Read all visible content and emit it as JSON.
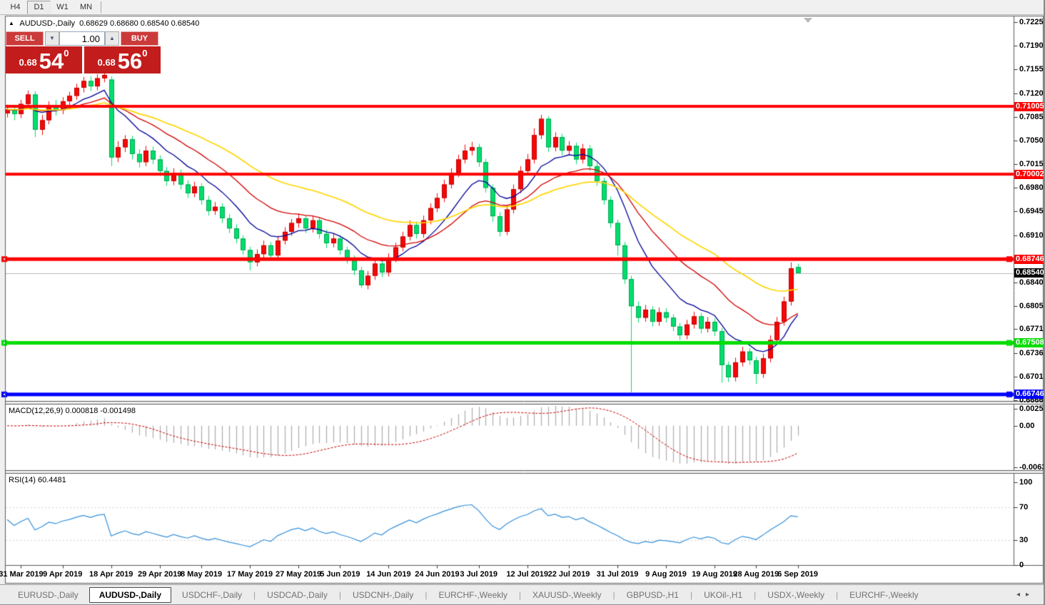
{
  "toolbar": {
    "timeframes": [
      {
        "label": "H4",
        "active": false
      },
      {
        "label": "D1",
        "active": true
      },
      {
        "label": "W1",
        "active": false
      },
      {
        "label": "MN",
        "active": false
      }
    ]
  },
  "chart": {
    "title": {
      "symbol": "AUDUSD-,Daily",
      "ohlc": "0.68629 0.68680 0.68540 0.68540"
    }
  },
  "trade_panel": {
    "sell_label": "SELL",
    "buy_label": "BUY",
    "volume": "1.00",
    "bid": {
      "base": "0.68",
      "big": "54",
      "sup": "0"
    },
    "ask": {
      "base": "0.68",
      "big": "56",
      "sup": "0"
    }
  },
  "chart_data": {
    "type": "candlestick",
    "symbol": "AUDUSD-",
    "timeframe": "Daily",
    "ohlc_display": {
      "open": "0.68629",
      "high": "0.68680",
      "low": "0.68540",
      "close": "0.68540"
    },
    "bull_color": "#F50808",
    "bear_color": "#00DE6E",
    "price_scale_ticks": [
      "0.72250",
      "0.71900",
      "0.71550",
      "0.71200",
      "0.70850",
      "0.70500",
      "0.70150",
      "0.69800",
      "0.69450",
      "0.69100",
      "0.68400",
      "0.68050",
      "0.67710",
      "0.67360",
      "0.67010",
      "0.66660"
    ],
    "hlines": [
      {
        "price": 0.71005,
        "label": "0.71005",
        "color": "#FE0000",
        "width": 4,
        "marker": false
      },
      {
        "price": 0.70002,
        "label": "0.70002",
        "color": "#FE0000",
        "width": 4,
        "marker": false
      },
      {
        "price": 0.68746,
        "label": "0.68746",
        "color": "#FE0000",
        "width": 5,
        "marker": true
      },
      {
        "price": 0.67508,
        "label": "0.67508",
        "color": "#00DD00",
        "width": 5,
        "marker": true
      },
      {
        "price": 0.66746,
        "label": "0.66746",
        "color": "#0000FE",
        "width": 5,
        "marker": true
      }
    ],
    "bid_line": {
      "price": 0.6854,
      "label": "0.68540",
      "line_color": "#BBBBBB",
      "label_bg": "#000000"
    },
    "moving_averages": [
      {
        "period": 10,
        "method": "ema",
        "color": "#000098"
      },
      {
        "period": 21,
        "method": "ema",
        "color": "#D40000"
      },
      {
        "period": 40,
        "method": "ema",
        "color": "#FFD600"
      }
    ],
    "date_labels": [
      {
        "label": "31 Mar 2019",
        "i": 2
      },
      {
        "label": "9 Apr 2019",
        "i": 8
      },
      {
        "label": "18 Apr 2019",
        "i": 15
      },
      {
        "label": "29 Apr 2019",
        "i": 22
      },
      {
        "label": "8 May 2019",
        "i": 28
      },
      {
        "label": "17 May 2019",
        "i": 35
      },
      {
        "label": "27 May 2019",
        "i": 42
      },
      {
        "label": "5 Jun 2019",
        "i": 48
      },
      {
        "label": "14 Jun 2019",
        "i": 55
      },
      {
        "label": "24 Jun 2019",
        "i": 62
      },
      {
        "label": "3 Jul 2019",
        "i": 68
      },
      {
        "label": "12 Jul 2019",
        "i": 75
      },
      {
        "label": "22 Jul 2019",
        "i": 81
      },
      {
        "label": "31 Jul 2019",
        "i": 88
      },
      {
        "label": "9 Aug 2019",
        "i": 95
      },
      {
        "label": "19 Aug 2019",
        "i": 102
      },
      {
        "label": "28 Aug 2019",
        "i": 108
      },
      {
        "label": "6 Sep 2019",
        "i": 114
      }
    ],
    "indicators": {
      "macd": {
        "name": "MACD",
        "params": [
          12,
          26,
          9
        ],
        "value": "0.000818",
        "signal_value": "-0.001498",
        "label": "MACD(12,26,9) 0.000818 -0.001498",
        "scale_labels": [
          "0.002574",
          "0.00",
          "-0.006326"
        ],
        "scale_values": [
          0.002574,
          0.0,
          -0.006326
        ],
        "hist_color": "#ABABAB",
        "signal_color": "#CC0000"
      },
      "rsi": {
        "name": "RSI",
        "period": 14,
        "value": "60.4481",
        "label": "RSI(14) 60.4481",
        "scale_labels": [
          "100",
          "70",
          "30",
          "0"
        ],
        "scale_values": [
          100,
          70,
          30,
          0
        ],
        "levels": [
          70,
          30
        ],
        "color": "#3390DC"
      }
    },
    "candles": [
      [
        0.709,
        0.7103,
        0.7084,
        0.7096
      ],
      [
        0.7096,
        0.7102,
        0.708,
        0.7089
      ],
      [
        0.7089,
        0.711,
        0.7083,
        0.7104
      ],
      [
        0.7104,
        0.7124,
        0.7098,
        0.7118
      ],
      [
        0.7118,
        0.7123,
        0.7055,
        0.7066
      ],
      [
        0.7066,
        0.7088,
        0.7058,
        0.708
      ],
      [
        0.708,
        0.7108,
        0.7074,
        0.7102
      ],
      [
        0.7102,
        0.711,
        0.7087,
        0.7095
      ],
      [
        0.7095,
        0.7114,
        0.7089,
        0.7108
      ],
      [
        0.7108,
        0.7122,
        0.7101,
        0.7116
      ],
      [
        0.7116,
        0.7134,
        0.711,
        0.7128
      ],
      [
        0.7128,
        0.7144,
        0.7121,
        0.7138
      ],
      [
        0.7138,
        0.7145,
        0.7123,
        0.713
      ],
      [
        0.713,
        0.7148,
        0.7124,
        0.7142
      ],
      [
        0.7142,
        0.7153,
        0.7136,
        0.7147
      ],
      [
        0.714,
        0.7145,
        0.7012,
        0.7025
      ],
      [
        0.7025,
        0.7049,
        0.7018,
        0.704
      ],
      [
        0.704,
        0.7058,
        0.7033,
        0.7052
      ],
      [
        0.7052,
        0.7057,
        0.7022,
        0.703
      ],
      [
        0.703,
        0.7037,
        0.701,
        0.7018
      ],
      [
        0.7018,
        0.7042,
        0.7012,
        0.7035
      ],
      [
        0.7035,
        0.7041,
        0.7015,
        0.7022
      ],
      [
        0.7022,
        0.7028,
        0.6998,
        0.7005
      ],
      [
        0.7005,
        0.7011,
        0.6983,
        0.699
      ],
      [
        0.699,
        0.7009,
        0.6984,
        0.7002
      ],
      [
        0.7002,
        0.7007,
        0.6978,
        0.6985
      ],
      [
        0.6985,
        0.6991,
        0.6965,
        0.6972
      ],
      [
        0.6972,
        0.6989,
        0.6966,
        0.6982
      ],
      [
        0.6982,
        0.6987,
        0.6955,
        0.6962
      ],
      [
        0.6962,
        0.6968,
        0.6939,
        0.6946
      ],
      [
        0.6946,
        0.6959,
        0.694,
        0.6952
      ],
      [
        0.6952,
        0.6957,
        0.6928,
        0.6935
      ],
      [
        0.6935,
        0.6941,
        0.6913,
        0.692
      ],
      [
        0.692,
        0.6926,
        0.6898,
        0.6905
      ],
      [
        0.6905,
        0.691,
        0.6881,
        0.6888
      ],
      [
        0.6888,
        0.6893,
        0.6858,
        0.687
      ],
      [
        0.687,
        0.6889,
        0.6864,
        0.6882
      ],
      [
        0.6882,
        0.6902,
        0.6876,
        0.6895
      ],
      [
        0.6895,
        0.69,
        0.6873,
        0.688
      ],
      [
        0.688,
        0.6909,
        0.6874,
        0.6902
      ],
      [
        0.6902,
        0.6922,
        0.6896,
        0.6915
      ],
      [
        0.6915,
        0.6934,
        0.6909,
        0.6928
      ],
      [
        0.6928,
        0.6942,
        0.6921,
        0.6935
      ],
      [
        0.6935,
        0.694,
        0.6913,
        0.692
      ],
      [
        0.692,
        0.6939,
        0.6914,
        0.6932
      ],
      [
        0.6932,
        0.6937,
        0.6905,
        0.6912
      ],
      [
        0.6912,
        0.6918,
        0.6891,
        0.6898
      ],
      [
        0.6898,
        0.6912,
        0.6892,
        0.6905
      ],
      [
        0.6905,
        0.691,
        0.6881,
        0.6888
      ],
      [
        0.6888,
        0.6893,
        0.6868,
        0.6875
      ],
      [
        0.6875,
        0.688,
        0.6851,
        0.6858
      ],
      [
        0.6858,
        0.6863,
        0.6832,
        0.6836
      ],
      [
        0.6836,
        0.6857,
        0.683,
        0.685
      ],
      [
        0.685,
        0.6875,
        0.6844,
        0.6868
      ],
      [
        0.6868,
        0.6873,
        0.6848,
        0.6855
      ],
      [
        0.6855,
        0.6883,
        0.6849,
        0.6876
      ],
      [
        0.6876,
        0.6899,
        0.687,
        0.6892
      ],
      [
        0.6892,
        0.6915,
        0.6886,
        0.6908
      ],
      [
        0.6908,
        0.6932,
        0.6902,
        0.6925
      ],
      [
        0.6925,
        0.693,
        0.6905,
        0.6912
      ],
      [
        0.6912,
        0.6939,
        0.6906,
        0.6932
      ],
      [
        0.6932,
        0.6957,
        0.6926,
        0.695
      ],
      [
        0.695,
        0.6972,
        0.6944,
        0.6965
      ],
      [
        0.6965,
        0.6992,
        0.6959,
        0.6985
      ],
      [
        0.6985,
        0.7009,
        0.6979,
        0.7002
      ],
      [
        0.7002,
        0.7029,
        0.6996,
        0.7022
      ],
      [
        0.7022,
        0.7044,
        0.7016,
        0.7035
      ],
      [
        0.7035,
        0.7048,
        0.7028,
        0.704
      ],
      [
        0.704,
        0.7045,
        0.7011,
        0.7018
      ],
      [
        0.7018,
        0.7023,
        0.6973,
        0.698
      ],
      [
        0.698,
        0.6985,
        0.693,
        0.6938
      ],
      [
        0.6938,
        0.6944,
        0.6908,
        0.6915
      ],
      [
        0.6915,
        0.6955,
        0.691,
        0.6948
      ],
      [
        0.6948,
        0.6985,
        0.6942,
        0.6978
      ],
      [
        0.6978,
        0.7012,
        0.6972,
        0.7005
      ],
      [
        0.7005,
        0.703,
        0.6999,
        0.7022
      ],
      [
        0.7022,
        0.7068,
        0.7016,
        0.7058
      ],
      [
        0.7058,
        0.7088,
        0.7052,
        0.7082
      ],
      [
        0.7082,
        0.7086,
        0.7033,
        0.704
      ],
      [
        0.704,
        0.7062,
        0.7034,
        0.7055
      ],
      [
        0.7055,
        0.706,
        0.7028,
        0.7035
      ],
      [
        0.7035,
        0.7049,
        0.7029,
        0.7042
      ],
      [
        0.7042,
        0.7047,
        0.7015,
        0.7022
      ],
      [
        0.7022,
        0.7045,
        0.7016,
        0.7038
      ],
      [
        0.7038,
        0.7043,
        0.7005,
        0.7012
      ],
      [
        0.7012,
        0.7017,
        0.6983,
        0.699
      ],
      [
        0.699,
        0.6995,
        0.6955,
        0.6962
      ],
      [
        0.6962,
        0.6967,
        0.6921,
        0.6928
      ],
      [
        0.6928,
        0.6933,
        0.688,
        0.6895
      ],
      [
        0.6895,
        0.69,
        0.6838,
        0.6845
      ],
      [
        0.6845,
        0.685,
        0.6678,
        0.6805
      ],
      [
        0.6805,
        0.6812,
        0.6781,
        0.6788
      ],
      [
        0.6788,
        0.6807,
        0.6782,
        0.68
      ],
      [
        0.68,
        0.6805,
        0.6775,
        0.6782
      ],
      [
        0.6782,
        0.6803,
        0.6776,
        0.6796
      ],
      [
        0.6796,
        0.6802,
        0.6781,
        0.6788
      ],
      [
        0.6788,
        0.6793,
        0.6768,
        0.6775
      ],
      [
        0.6775,
        0.678,
        0.6755,
        0.6762
      ],
      [
        0.6762,
        0.6785,
        0.6756,
        0.6778
      ],
      [
        0.6778,
        0.6797,
        0.6772,
        0.679
      ],
      [
        0.679,
        0.6795,
        0.6765,
        0.6772
      ],
      [
        0.6772,
        0.6789,
        0.6766,
        0.6782
      ],
      [
        0.6782,
        0.6787,
        0.6761,
        0.6768
      ],
      [
        0.6768,
        0.6773,
        0.6692,
        0.6718
      ],
      [
        0.6718,
        0.6723,
        0.6693,
        0.67
      ],
      [
        0.67,
        0.6729,
        0.6694,
        0.6722
      ],
      [
        0.6722,
        0.6745,
        0.6716,
        0.6738
      ],
      [
        0.6738,
        0.6743,
        0.6718,
        0.6725
      ],
      [
        0.6725,
        0.673,
        0.669,
        0.6705
      ],
      [
        0.6705,
        0.6735,
        0.6699,
        0.6728
      ],
      [
        0.6728,
        0.6762,
        0.6722,
        0.6755
      ],
      [
        0.6755,
        0.6789,
        0.6749,
        0.6782
      ],
      [
        0.6782,
        0.6819,
        0.6776,
        0.6812
      ],
      [
        0.6812,
        0.687,
        0.6806,
        0.6861
      ],
      [
        0.68629,
        0.6868,
        0.6854,
        0.6854
      ]
    ]
  },
  "tabs": {
    "items": [
      {
        "label": "EURUSD-,Daily",
        "active": false
      },
      {
        "label": "AUDUSD-,Daily",
        "active": true
      },
      {
        "label": "USDCHF-,Daily",
        "active": false
      },
      {
        "label": "USDCAD-,Daily",
        "active": false
      },
      {
        "label": "USDCNH-,Daily",
        "active": false
      },
      {
        "label": "EURCHF-,Weekly",
        "active": false
      },
      {
        "label": "XAUUSD-,Weekly",
        "active": false
      },
      {
        "label": "GBPUSD-,H1",
        "active": false
      },
      {
        "label": "UKOil-,H1",
        "active": false
      },
      {
        "label": "USDX-,Weekly",
        "active": false
      },
      {
        "label": "EURCHF-,Weekly",
        "active": false
      }
    ],
    "scroll_left": "◂",
    "scroll_right": "▸"
  }
}
